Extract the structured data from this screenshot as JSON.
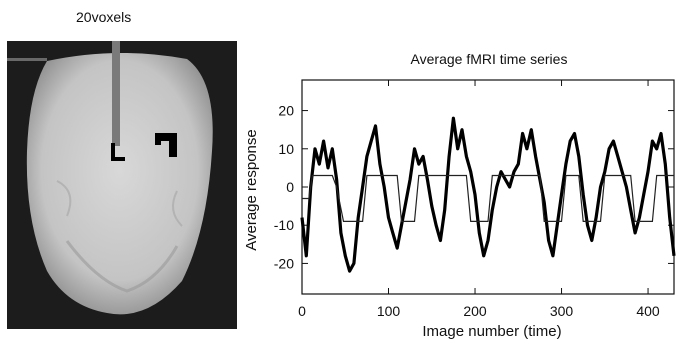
{
  "brain_image": {
    "title": "20voxels"
  },
  "chart_data": {
    "type": "line",
    "title": "Average fMRI time series",
    "xlabel": "Image number (time)",
    "ylabel": "Average response",
    "xlim": [
      0,
      430
    ],
    "ylim": [
      -28,
      28
    ],
    "xticks": [
      0,
      100,
      200,
      300,
      400
    ],
    "yticks": [
      20,
      10,
      0,
      -10,
      -20
    ],
    "grid": false,
    "series": [
      {
        "style": "noisy-thick",
        "x": [
          0,
          5,
          10,
          15,
          20,
          25,
          30,
          35,
          40,
          45,
          50,
          55,
          60,
          65,
          70,
          75,
          80,
          85,
          90,
          95,
          100,
          105,
          110,
          115,
          120,
          125,
          130,
          135,
          140,
          145,
          150,
          155,
          160,
          165,
          170,
          175,
          180,
          185,
          190,
          195,
          200,
          205,
          210,
          215,
          220,
          225,
          230,
          235,
          240,
          245,
          250,
          255,
          260,
          265,
          270,
          275,
          280,
          285,
          290,
          295,
          300,
          305,
          310,
          315,
          320,
          325,
          330,
          335,
          340,
          345,
          350,
          355,
          360,
          365,
          370,
          375,
          380,
          385,
          390,
          395,
          400,
          405,
          410,
          415,
          420,
          425,
          430
        ],
        "values": [
          -8,
          -18,
          0,
          10,
          6,
          12,
          5,
          10,
          2,
          -12,
          -18,
          -22,
          -20,
          -8,
          0,
          8,
          12,
          16,
          6,
          0,
          -8,
          -12,
          -16,
          -10,
          -4,
          2,
          10,
          6,
          8,
          2,
          -5,
          -10,
          -14,
          -6,
          8,
          18,
          10,
          15,
          8,
          4,
          -2,
          -12,
          -18,
          -14,
          -6,
          0,
          4,
          2,
          0,
          4,
          6,
          14,
          10,
          15,
          8,
          2,
          -4,
          -14,
          -18,
          -10,
          -2,
          6,
          12,
          14,
          8,
          -2,
          -10,
          -14,
          -8,
          0,
          4,
          10,
          12,
          8,
          4,
          0,
          -6,
          -12,
          -8,
          -2,
          4,
          12,
          10,
          14,
          6,
          -8,
          -18
        ]
      },
      {
        "style": "smooth-thin",
        "x": [
          0,
          8,
          12,
          35,
          40,
          48,
          55,
          70,
          75,
          85,
          90,
          110,
          115,
          130,
          135,
          148,
          153,
          160,
          165,
          190,
          195,
          215,
          220,
          240,
          245,
          255,
          260,
          275,
          280,
          300,
          305,
          320,
          325,
          345,
          350,
          368,
          372,
          380,
          385,
          405,
          410,
          430
        ],
        "values": [
          -3,
          -3,
          3,
          3,
          0,
          -9,
          -9,
          -9,
          3,
          3,
          3,
          3,
          -9,
          -9,
          3,
          3,
          3,
          3,
          3,
          3,
          -9,
          -9,
          3,
          3,
          3,
          3,
          3,
          3,
          -9,
          -9,
          3,
          3,
          -9,
          -9,
          3,
          3,
          3,
          3,
          -9,
          -9,
          3,
          3
        ]
      }
    ]
  }
}
